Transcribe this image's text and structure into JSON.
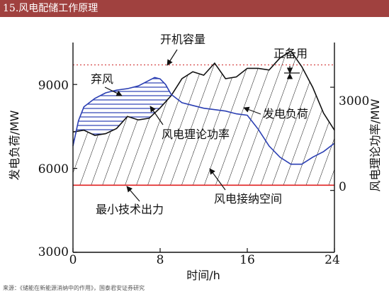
{
  "header": {
    "title": "15.风电配储工作原理",
    "accent_color": "#a0413f"
  },
  "footer": {
    "text": "来源：《储能在新能源消纳中的作用》，国泰君安证券研究"
  },
  "chart_data": {
    "type": "line",
    "xlabel": "时间/h",
    "ylabel_left": "发电负荷/MW",
    "ylabel_right": "风电理论功率/MW",
    "xlim": [
      0,
      24
    ],
    "ylim_left": [
      3000,
      10500
    ],
    "ylim_right": [
      -1800,
      4300
    ],
    "x_ticks": [
      0,
      8,
      16,
      24
    ],
    "y_ticks_left": [
      3000,
      6000,
      9000
    ],
    "y_ticks_right": [
      0,
      3000
    ],
    "x_tick_labels": [
      "0",
      "8",
      "16",
      "24"
    ],
    "y_tick_labels_left": [
      "3000",
      "6000",
      "9000"
    ],
    "y_tick_labels_right": [
      "0",
      "3000"
    ],
    "grid": false,
    "reference_lines": {
      "installed_capacity": 9700,
      "min_technical_output": 5400
    },
    "series": [
      {
        "name": "发电负荷",
        "color": "#2b3fb3",
        "x": [
          0,
          0.5,
          1,
          2,
          3,
          4,
          5,
          6,
          7,
          7.5,
          8,
          8.5,
          9,
          10,
          11,
          12,
          13,
          14,
          15,
          16,
          17,
          18,
          19,
          20,
          21,
          22,
          23,
          24
        ],
        "y": [
          6800,
          7700,
          8200,
          8500,
          8700,
          8800,
          8850,
          8950,
          9150,
          9250,
          9200,
          9000,
          8650,
          8350,
          8250,
          8150,
          8100,
          8050,
          7950,
          7900,
          7400,
          6800,
          6400,
          6150,
          6150,
          6400,
          6600,
          6900
        ]
      },
      {
        "name": "风电理论功率",
        "color": "#111111",
        "x": [
          0,
          1,
          2,
          3,
          4,
          5,
          6,
          7,
          8,
          9,
          10,
          11,
          12,
          13,
          14,
          15,
          16,
          17,
          18,
          19,
          20,
          21,
          22,
          23,
          24
        ],
        "y": [
          1700,
          1750,
          1600,
          1650,
          1800,
          2150,
          2050,
          2100,
          2400,
          2750,
          3250,
          3450,
          3350,
          3700,
          3250,
          3300,
          3550,
          3550,
          3500,
          3850,
          4050,
          3600,
          3000,
          2250,
          1750
        ]
      }
    ],
    "annotations": [
      "开机容量",
      "正备用",
      "弃风",
      "发电负荷",
      "风电理论功率",
      "风电接纳空间",
      "最小技术出力"
    ]
  }
}
